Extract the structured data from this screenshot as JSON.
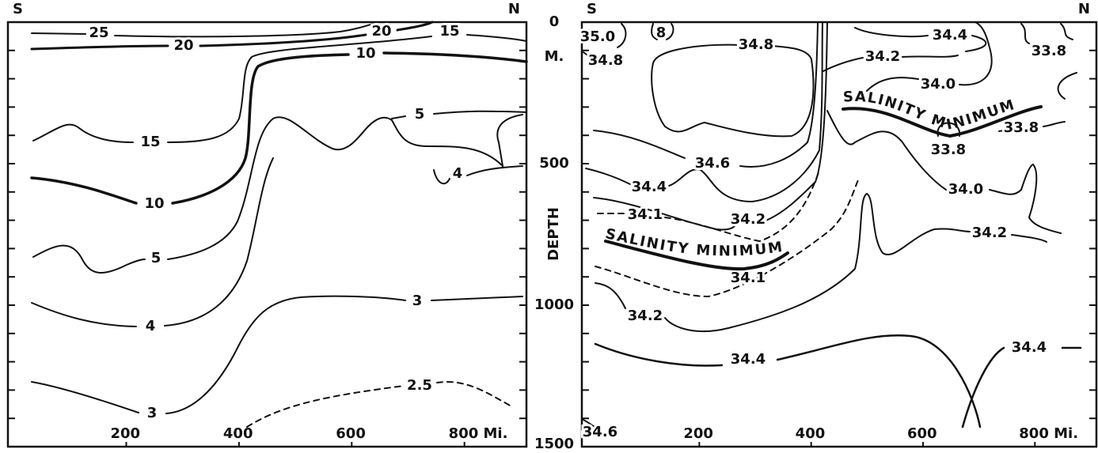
{
  "chart_data": [
    {
      "type": "contour",
      "left_label": "S",
      "right_label": "N",
      "xlim": [
        -10,
        910
      ],
      "xticks": [
        200,
        400,
        600,
        {
          "value": 800,
          "label": "800 Mi."
        }
      ],
      "ylim": [
        0,
        1500
      ],
      "contour_labels": [
        25,
        20,
        20,
        15,
        10,
        15,
        10,
        5,
        5,
        4,
        4,
        3,
        3,
        2.5
      ]
    },
    {
      "type": "contour",
      "left_label": "S",
      "right_label": "N",
      "xlim": [
        -10,
        910
      ],
      "xticks": [
        200,
        400,
        600,
        {
          "value": 800,
          "label": "800 Mi."
        }
      ],
      "ylim": [
        0,
        1500
      ],
      "yticks": [
        0,
        500,
        1000,
        1500
      ],
      "y_minor_ticks": [
        0,
        100,
        200,
        300,
        400,
        500,
        600,
        700,
        800,
        900,
        1000,
        1100,
        1200,
        1300,
        1400,
        1500
      ],
      "ylabel": "DEPTH",
      "yunit": "M.",
      "contour_labels": [
        {
          "value": 35,
          "label": "35.0"
        },
        8,
        34.8,
        34.8,
        34.4,
        34.2,
        {
          "value": 34,
          "label": "34.0"
        },
        33.8,
        33.8,
        33.8,
        34.6,
        34.4,
        {
          "value": 34,
          "label": "34.0"
        },
        34.1,
        34.2,
        34.2,
        34.1,
        34.2,
        34.4,
        34.4,
        34.6
      ],
      "annotations": [
        "SALINITY MINIMUM",
        "SALINITY MINIMUM"
      ]
    }
  ]
}
